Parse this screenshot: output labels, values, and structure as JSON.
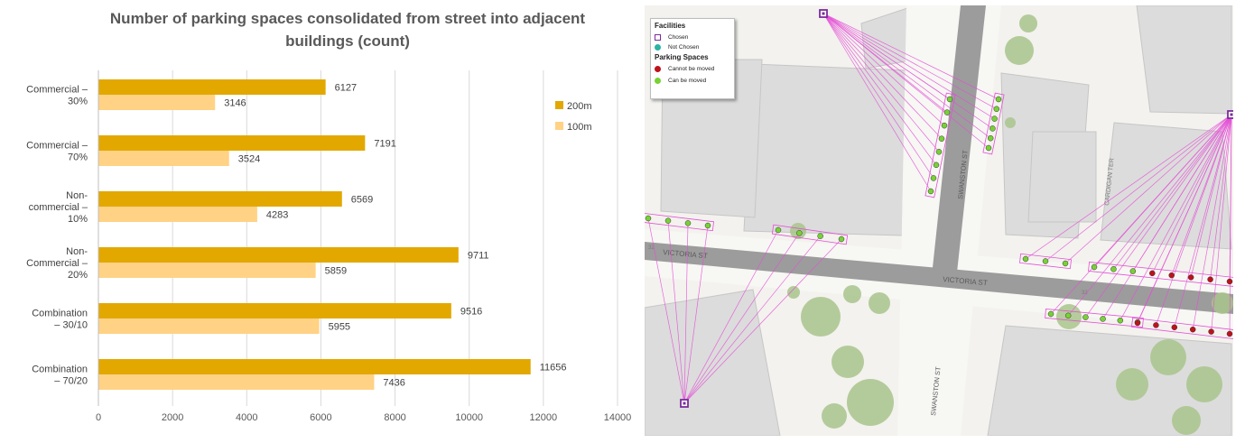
{
  "chart_data": {
    "type": "bar",
    "orientation": "horizontal",
    "title": "Number of parking spaces consolidated from street into adjacent buildings (count)",
    "categories": [
      [
        "Commercial –",
        "30%"
      ],
      [
        "Commercial –",
        "70%"
      ],
      [
        "Non-",
        "commercial –",
        "10%"
      ],
      [
        "Non-",
        "Commercial –",
        "20%"
      ],
      [
        "Combination",
        "– 30/10"
      ],
      [
        "Combination",
        "– 70/20"
      ]
    ],
    "series": [
      {
        "name": "200m",
        "color": "#e2a800",
        "values": [
          6127,
          7191,
          6569,
          9711,
          9516,
          11656
        ]
      },
      {
        "name": "100m",
        "color": "#ffd285",
        "values": [
          3146,
          3524,
          4283,
          5859,
          5955,
          7436
        ]
      }
    ],
    "xlim": [
      0,
      14000
    ],
    "xticks": [
      "0",
      "2000",
      "4000",
      "6000",
      "8000",
      "10000",
      "12000",
      "14000"
    ],
    "grid": true,
    "legend_position": "right"
  },
  "map": {
    "legend": {
      "facilities_heading": "Facilities",
      "chosen_label": "Chosen",
      "not_chosen_label": "Not Chosen",
      "parking_heading": "Parking Spaces",
      "cannot_move_label": "Cannot be moved",
      "can_move_label": "Can be moved"
    },
    "streets": {
      "swanston_upper": "SWANSTON ST",
      "swanston_lower": "SWANSTON ST",
      "victoria_left": "VICTORIA ST",
      "victoria_right": "VICTORIA ST",
      "cardigan": "CARDIGAN TER",
      "route_a": "32",
      "route_b": "32"
    },
    "colors": {
      "chosen": "#7b2c9c",
      "not_chosen": "#2bb3a6",
      "cannot_move": "#c0111b",
      "can_move": "#78d135",
      "link": "#e44fd6"
    }
  }
}
